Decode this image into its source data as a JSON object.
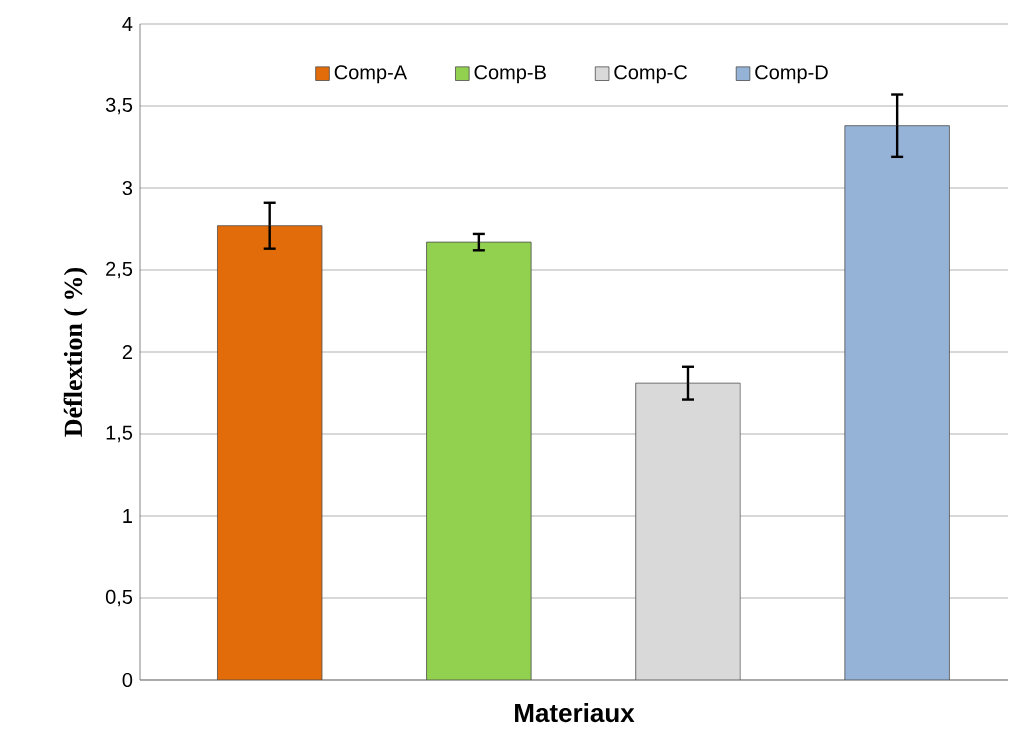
{
  "chart_data": {
    "type": "bar",
    "xlabel": "Materiaux",
    "ylabel": "Déflextion ( %)",
    "categories": [
      null,
      null,
      null,
      null
    ],
    "series": [
      {
        "name": "Comp-A",
        "color": "#e36c0a",
        "values": [
          2.77,
          null,
          null,
          null
        ],
        "errors": [
          0.14,
          null,
          null,
          null
        ]
      },
      {
        "name": "Comp-B",
        "color": "#92d050",
        "values": [
          null,
          2.67,
          null,
          null
        ],
        "errors": [
          null,
          0.05,
          null,
          null
        ]
      },
      {
        "name": "Comp-C",
        "color": "#d9d9d9",
        "values": [
          null,
          null,
          1.81,
          null
        ],
        "errors": [
          null,
          null,
          0.1,
          null
        ]
      },
      {
        "name": "Comp-D",
        "color": "#95b3d7",
        "values": [
          null,
          null,
          null,
          3.38
        ],
        "errors": [
          null,
          null,
          null,
          0.19
        ]
      }
    ],
    "ylim": [
      0,
      4
    ],
    "yticks": [
      0,
      {
        "value": 0.5,
        "label": "0,5"
      },
      1,
      {
        "value": 1.5,
        "label": "1,5"
      },
      2,
      {
        "value": 2.5,
        "label": "2,5"
      },
      3,
      {
        "value": 3.5,
        "label": "3,5"
      },
      4
    ],
    "grid": "y",
    "legend": "top"
  }
}
